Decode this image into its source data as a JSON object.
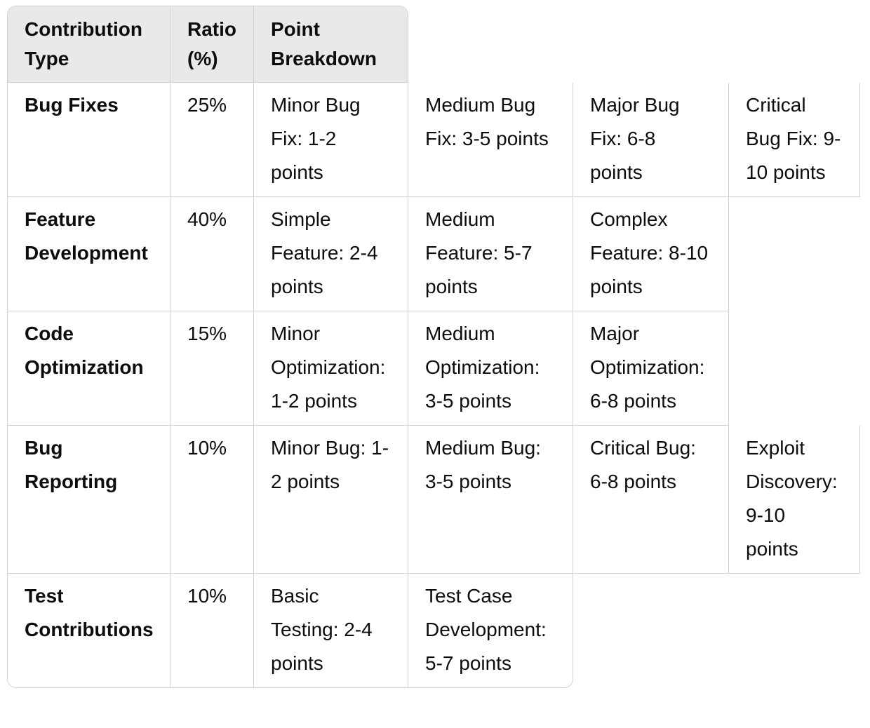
{
  "table": {
    "header": [
      "Contribution Type",
      "Ratio (%)",
      "Point Breakdown"
    ],
    "rows": [
      {
        "type": "Bug Fixes",
        "ratio": "25%",
        "breakdown": [
          "Minor Bug Fix: 1-2 points",
          "Medium Bug Fix: 3-5 points",
          "Major Bug Fix: 6-8 points",
          "Critical Bug Fix: 9-10 points"
        ]
      },
      {
        "type": "Feature Development",
        "ratio": "40%",
        "breakdown": [
          "Simple Feature: 2-4 points",
          "Medium Feature: 5-7 points",
          "Complex Feature: 8-10 points"
        ]
      },
      {
        "type": "Code Optimization",
        "ratio": "15%",
        "breakdown": [
          "Minor Optimization: 1-2 points",
          "Medium Optimization: 3-5 points",
          "Major Optimization: 6-8 points"
        ]
      },
      {
        "type": "Bug Reporting",
        "ratio": "10%",
        "breakdown": [
          "Minor Bug: 1-2 points",
          "Medium Bug: 3-5 points",
          "Critical Bug: 6-8 points",
          "Exploit Discovery: 9-10 points"
        ]
      },
      {
        "type": "Test Contributions",
        "ratio": "10%",
        "breakdown": [
          "Basic Testing: 2-4 points",
          "Test Case Development: 5-7 points"
        ]
      }
    ]
  }
}
